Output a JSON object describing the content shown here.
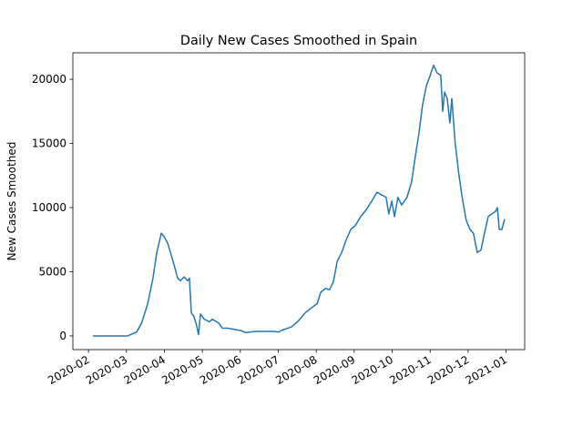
{
  "chart_data": {
    "type": "line",
    "title": "Daily New Cases Smoothed in Spain",
    "y_label": "New Cases Smoothed",
    "xlim": [
      -0.41,
      11.49
    ],
    "xticks": [
      {
        "value": 0,
        "label": "2020-02"
      },
      {
        "value": 1,
        "label": "2020-03"
      },
      {
        "value": 2,
        "label": "2020-04"
      },
      {
        "value": 3,
        "label": "2020-05"
      },
      {
        "value": 4,
        "label": "2020-06"
      },
      {
        "value": 5,
        "label": "2020-07"
      },
      {
        "value": 6,
        "label": "2020-08"
      },
      {
        "value": 7,
        "label": "2020-09"
      },
      {
        "value": 8,
        "label": "2020-10"
      },
      {
        "value": 9,
        "label": "2020-11"
      },
      {
        "value": 10,
        "label": "2020-12"
      },
      {
        "value": 11,
        "label": "2021-01"
      }
    ],
    "ylim": [
      -1068,
      22064
    ],
    "yticks": [
      0,
      5000,
      10000,
      15000,
      20000
    ],
    "series": [
      {
        "color": "#1f77b4",
        "x": [
          0.12,
          1.03,
          1.27,
          1.4,
          1.56,
          1.7,
          1.8,
          1.92,
          2.0,
          2.09,
          2.23,
          2.35,
          2.42,
          2.52,
          2.61,
          2.66,
          2.71,
          2.78,
          2.85,
          2.9,
          2.95,
          3.05,
          3.19,
          3.26,
          3.43,
          3.53,
          3.67,
          3.86,
          4.03,
          4.15,
          4.39,
          4.87,
          5.01,
          5.1,
          5.35,
          5.54,
          5.71,
          5.88,
          6.02,
          6.12,
          6.24,
          6.35,
          6.45,
          6.55,
          6.67,
          6.79,
          6.91,
          7.03,
          7.17,
          7.31,
          7.46,
          7.6,
          7.72,
          7.84,
          7.91,
          7.99,
          8.06,
          8.15,
          8.25,
          8.39,
          8.51,
          8.61,
          8.7,
          8.8,
          8.9,
          8.99,
          9.09,
          9.18,
          9.28,
          9.33,
          9.38,
          9.45,
          9.52,
          9.57,
          9.66,
          9.76,
          9.86,
          9.95,
          10.05,
          10.14,
          10.24,
          10.34,
          10.43,
          10.53,
          10.62,
          10.72,
          10.77,
          10.82,
          10.89,
          10.96
        ],
        "values": [
          0,
          0,
          300,
          1000,
          2500,
          4500,
          6500,
          8000,
          7700,
          7200,
          5800,
          4500,
          4300,
          4600,
          4300,
          4500,
          1800,
          1500,
          800,
          100,
          1700,
          1300,
          1100,
          1300,
          1000,
          600,
          600,
          500,
          400,
          250,
          350,
          350,
          300,
          450,
          700,
          1200,
          1800,
          2200,
          2500,
          3400,
          3700,
          3600,
          4200,
          5800,
          6500,
          7500,
          8300,
          8600,
          9300,
          9800,
          10500,
          11200,
          11000,
          10800,
          9500,
          10500,
          9300,
          10800,
          10200,
          10800,
          12000,
          14000,
          15700,
          18000,
          19500,
          20200,
          21100,
          20500,
          20300,
          17500,
          19000,
          18500,
          16600,
          18500,
          15000,
          12500,
          10500,
          9000,
          8300,
          8000,
          6500,
          6700,
          8000,
          9300,
          9500,
          9700,
          10000,
          8300,
          8300,
          9100
        ]
      }
    ]
  }
}
